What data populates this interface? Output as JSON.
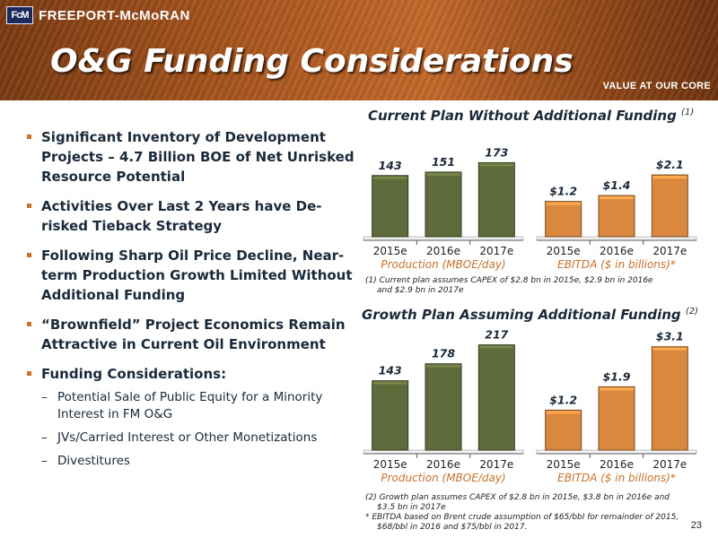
{
  "header": {
    "logo_text": "FcM",
    "company": "FREEPORT-McMoRAN",
    "title": "O&G Funding Considerations",
    "tagline": "VALUE AT OUR CORE"
  },
  "bullets": [
    "Significant Inventory of Development Projects – 4.7 Billion BOE of Net Unrisked Resource Potential",
    "Activities Over Last 2 Years have De-risked Tieback Strategy",
    "Following Sharp Oil Price Decline, Near-term Production Growth Limited Without Additional Funding",
    "“Brownfield” Project Economics Remain Attractive in Current Oil Environment",
    "Funding Considerations:"
  ],
  "sub_bullets": [
    "Potential Sale of Public Equity for a Minority Interest in FM O&G",
    "JVs/Carried Interest or Other Monetizations",
    "Divestitures"
  ],
  "section1": {
    "title": "Current Plan Without Additional Funding",
    "note": "(1)"
  },
  "section2": {
    "title": "Growth Plan Assuming Additional Funding",
    "note": "(2)"
  },
  "footnotes": {
    "f1_line1": "(1) Current plan assumes CAPEX of $2.8 bn in 2015e, $2.9 bn in 2016e",
    "f1_line2": "and $2.9 bn in 2017e",
    "f2_line1": "(2) Growth plan assumes CAPEX of $2.8 bn in 2015e, $3.8 bn in 2016e and",
    "f2_line2": "$3.5 bn in 2017e",
    "f3_line1": "* EBITDA based on Brent crude assumption of $65/bbl for remainder of 2015,",
    "f3_line2": "$68/bbl in 2016 and $75/bbl in 2017."
  },
  "page_number": "23",
  "colors": {
    "production_bar": "#5e6b3a",
    "ebitda_bar": "#d9883e",
    "caption": "#c8712c"
  },
  "chart_data": [
    {
      "type": "bar",
      "title": "Current Plan Without Additional Funding",
      "xlabel": "Production (MBOE/day)",
      "categories": [
        "2015e",
        "2016e",
        "2017e"
      ],
      "values": [
        143,
        151,
        173
      ],
      "labels": [
        "143",
        "151",
        "173"
      ],
      "ylim": [
        0,
        220
      ]
    },
    {
      "type": "bar",
      "title": "Current Plan Without Additional Funding",
      "xlabel": "EBITDA ($ in billions)*",
      "categories": [
        "2015e",
        "2016e",
        "2017e"
      ],
      "values": [
        1.2,
        1.4,
        2.1
      ],
      "labels": [
        "$1.2",
        "$1.4",
        "$2.1"
      ],
      "ylim": [
        0,
        3.2
      ]
    },
    {
      "type": "bar",
      "title": "Growth Plan Assuming Additional Funding",
      "xlabel": "Production (MBOE/day)",
      "categories": [
        "2015e",
        "2016e",
        "2017e"
      ],
      "values": [
        143,
        178,
        217
      ],
      "labels": [
        "143",
        "178",
        "217"
      ],
      "ylim": [
        0,
        220
      ]
    },
    {
      "type": "bar",
      "title": "Growth Plan Assuming Additional Funding",
      "xlabel": "EBITDA ($ in billions)*",
      "categories": [
        "2015e",
        "2016e",
        "2017e"
      ],
      "values": [
        1.2,
        1.9,
        3.1
      ],
      "labels": [
        "$1.2",
        "$1.9",
        "$3.1"
      ],
      "ylim": [
        0,
        3.2
      ]
    }
  ]
}
